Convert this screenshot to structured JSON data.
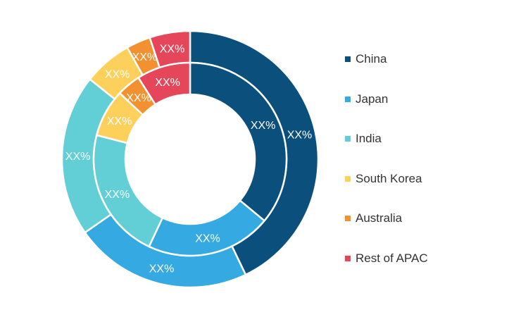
{
  "chart_data": {
    "type": "donut",
    "categories": [
      "China",
      "Japan",
      "India",
      "South Korea",
      "Australia",
      "Rest of APAC"
    ],
    "colors": [
      "#0b4f7c",
      "#35a9e1",
      "#62cfd6",
      "#fcd05a",
      "#f39130",
      "#e5465a"
    ],
    "series": [
      {
        "values": [
          42,
          22,
          20,
          6,
          3,
          5
        ],
        "labels": [
          "XX%",
          "XX%",
          "XX%",
          "XX%",
          "XX%",
          "XX%"
        ]
      },
      {
        "values": [
          36,
          21,
          22,
          8,
          4,
          9
        ],
        "labels": [
          "XX%",
          "XX%",
          "XX%",
          "XX%",
          "XX%",
          "XX%"
        ]
      }
    ],
    "legend_position": "right"
  },
  "legend": {
    "items": [
      {
        "label": "China",
        "color": "#0b4f7c"
      },
      {
        "label": "Japan",
        "color": "#35a9e1"
      },
      {
        "label": "India",
        "color": "#62cfd6"
      },
      {
        "label": "South Korea",
        "color": "#fcd05a"
      },
      {
        "label": "Australia",
        "color": "#f39130"
      },
      {
        "label": "Rest of APAC",
        "color": "#e5465a"
      }
    ]
  }
}
